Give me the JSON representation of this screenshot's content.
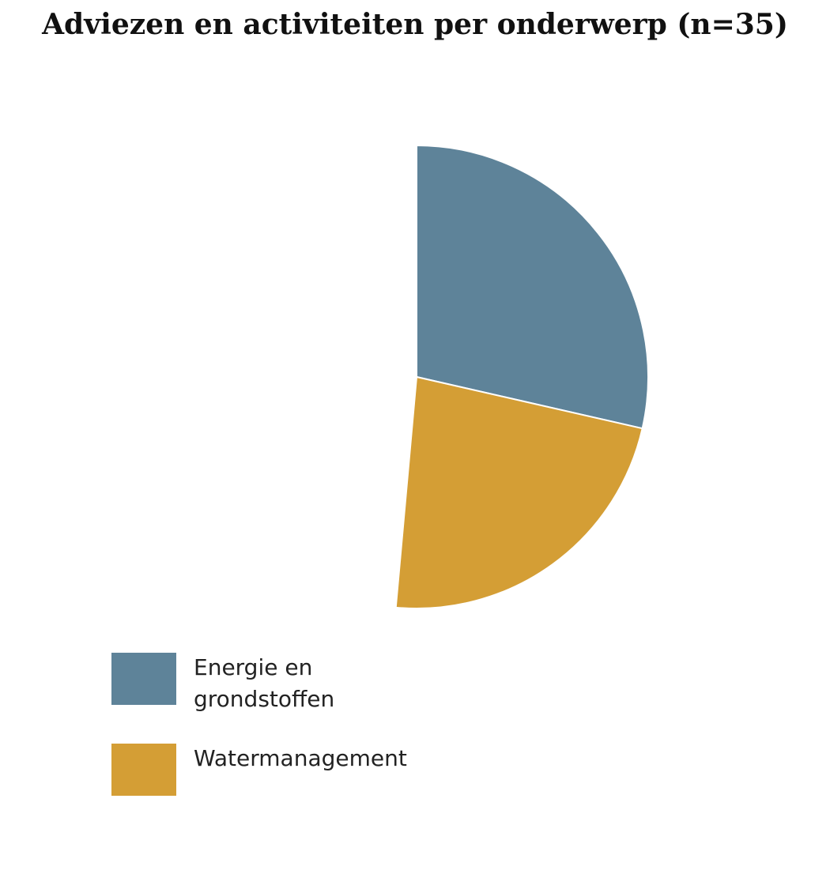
{
  "chart_data": {
    "type": "pie",
    "title": "Adviezen en activiteiten per onderwerp (n=35)",
    "total": 35,
    "slices": [
      {
        "label": "Energie en grondstoffen",
        "value": 10,
        "color": "#5e8399"
      },
      {
        "label": "Watermanagement",
        "value": 8,
        "color": "#d49e35"
      }
    ],
    "start_angle_deg": 0,
    "direction": "clockwise",
    "legend_position": "bottom-left"
  }
}
